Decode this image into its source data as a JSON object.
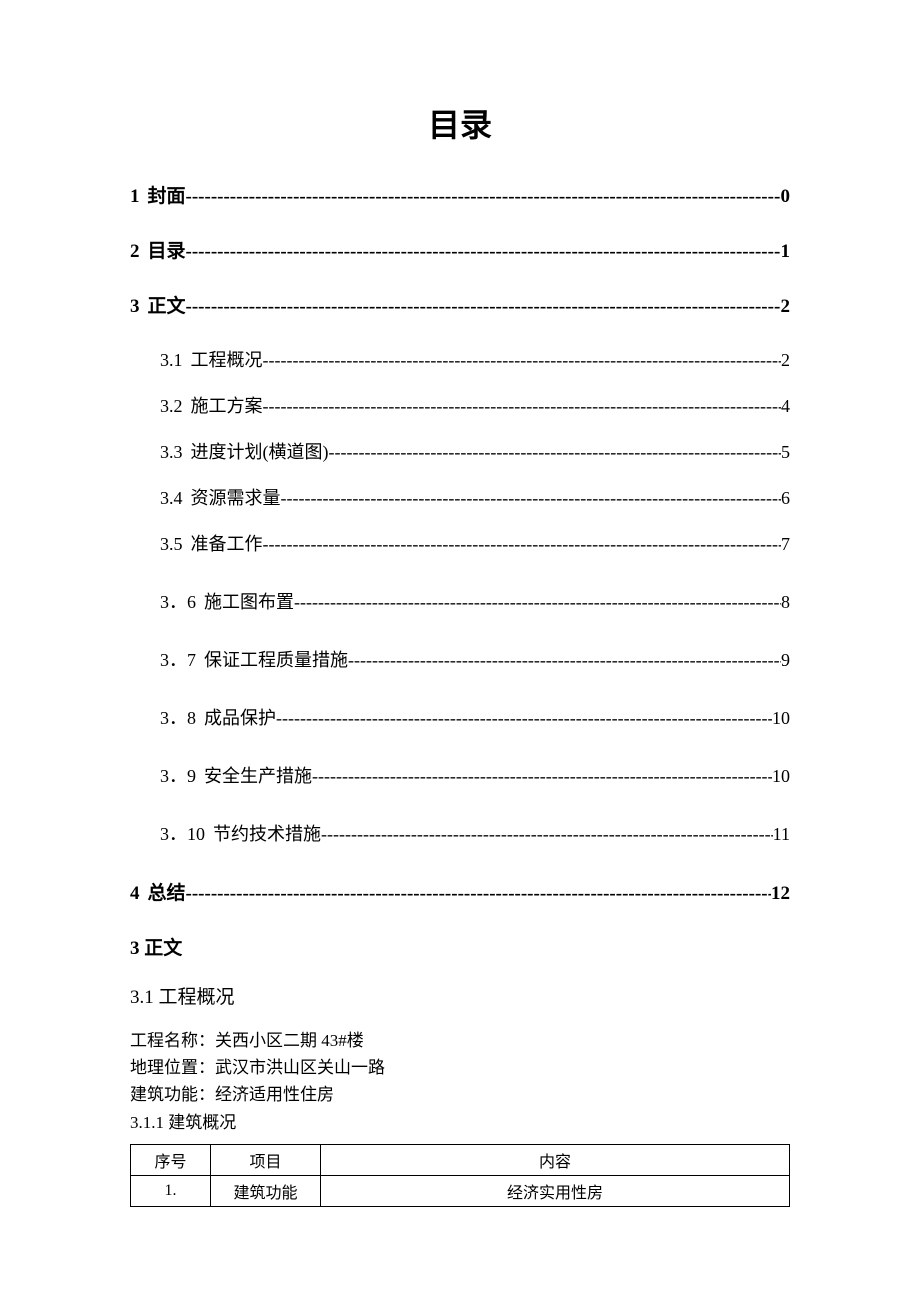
{
  "title": "目录",
  "toc_l1": [
    {
      "num": "1",
      "label": "封面",
      "page": "0"
    },
    {
      "num": "2",
      "label": "目录",
      "page": "1"
    },
    {
      "num": "3",
      "label": "正文",
      "page": "2"
    },
    {
      "num": "4",
      "label": "总结",
      "page": "12"
    }
  ],
  "toc_l2": [
    {
      "num": "3.1",
      "label": "工程概况",
      "page": "2"
    },
    {
      "num": "3.2",
      "label": "施工方案",
      "page": "4"
    },
    {
      "num": "3.3",
      "label": "进度计划(横道图)",
      "page": "5"
    },
    {
      "num": "3.4",
      "label": "资源需求量",
      "page": "6"
    },
    {
      "num": "3.5",
      "label": "准备工作",
      "page": "7"
    },
    {
      "num": "3．6",
      "label": "施工图布置",
      "page": "8"
    },
    {
      "num": "3．7",
      "label": "保证工程质量措施",
      "page": "9"
    },
    {
      "num": "3．8",
      "label": "成品保护",
      "page": "10"
    },
    {
      "num": "3．9",
      "label": "安全生产措施",
      "page": "10"
    },
    {
      "num": "3．10",
      "label": "节约技术措施",
      "page": "11"
    }
  ],
  "section3": {
    "heading": "3  正文",
    "sub31": "3.1 工程概况",
    "line_name": "工程名称：关西小区二期 43#楼",
    "line_loc": "地理位置：武汉市洪山区关山一路",
    "line_func": "建筑功能：经济适用性住房",
    "sub311": "3.1.1 建筑概况"
  },
  "table": {
    "headers": {
      "seq": "序号",
      "item": "项目",
      "content": "内容"
    },
    "rows": [
      {
        "seq": "1.",
        "item": "建筑功能",
        "content": "经济实用性房"
      }
    ]
  },
  "style": {
    "background_color": "#ffffff",
    "text_color": "#000000",
    "title_fontsize": 32,
    "l1_fontsize": 19,
    "l2_fontsize": 18,
    "body_fontsize": 17,
    "table_fontsize": 16,
    "border_color": "#000000",
    "font_family": "SimSun"
  },
  "dash_fill": "----------------------------------------------------------------------------------------------------"
}
